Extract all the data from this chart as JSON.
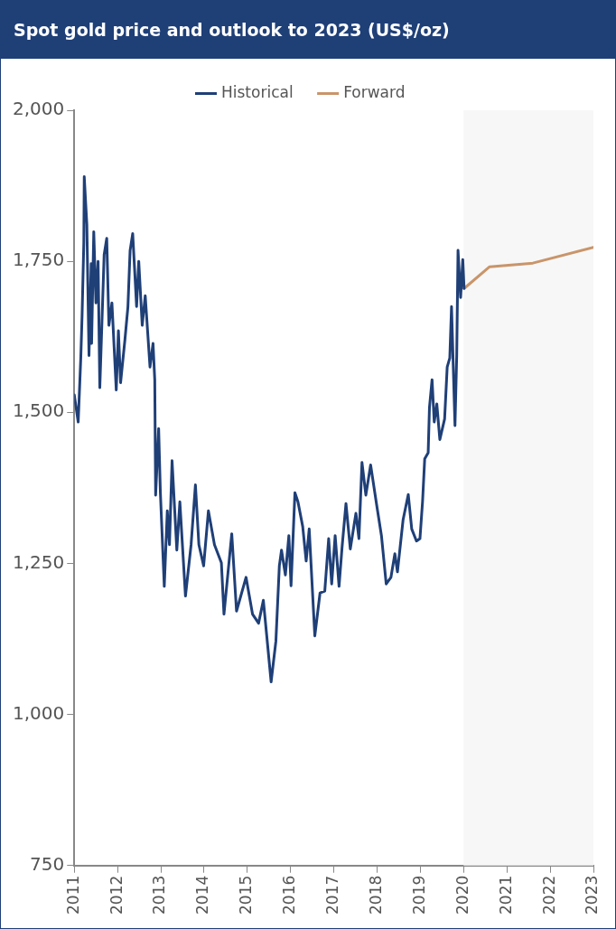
{
  "chart_data": {
    "type": "line",
    "title": "Spot gold price and outlook to 2023 (US$/oz)",
    "series": [
      {
        "name": "Historical",
        "color": "#1f3f77",
        "x": [
          2011.0,
          2011.09,
          2011.15,
          2011.18,
          2011.22,
          2011.23,
          2011.29,
          2011.34,
          2011.39,
          2011.4,
          2011.45,
          2011.5,
          2011.55,
          2011.59,
          2011.69,
          2011.75,
          2011.8,
          2011.87,
          2011.97,
          2012.02,
          2012.07,
          2012.17,
          2012.24,
          2012.29,
          2012.35,
          2012.44,
          2012.49,
          2012.57,
          2012.64,
          2012.75,
          2012.82,
          2012.86,
          2012.88,
          2012.95,
          2012.99,
          2013.08,
          2013.15,
          2013.2,
          2013.26,
          2013.37,
          2013.44,
          2013.57,
          2013.7,
          2013.8,
          2013.88,
          2013.99,
          2014.1,
          2014.24,
          2014.4,
          2014.46,
          2014.64,
          2014.75,
          2014.97,
          2015.12,
          2015.26,
          2015.37,
          2015.55,
          2015.66,
          2015.74,
          2015.79,
          2015.88,
          2015.96,
          2016.01,
          2016.1,
          2016.17,
          2016.28,
          2016.36,
          2016.43,
          2016.56,
          2016.68,
          2016.79,
          2016.88,
          2016.95,
          2017.03,
          2017.12,
          2017.19,
          2017.28,
          2017.38,
          2017.51,
          2017.58,
          2017.65,
          2017.74,
          2017.85,
          2018.0,
          2018.1,
          2018.21,
          2018.32,
          2018.41,
          2018.47,
          2018.6,
          2018.72,
          2018.8,
          2018.91,
          2018.99,
          2019.05,
          2019.1,
          2019.18,
          2019.21,
          2019.27,
          2019.32,
          2019.38,
          2019.45,
          2019.56,
          2019.62,
          2019.68,
          2019.72,
          2019.8,
          2019.84,
          2019.87,
          2019.93,
          2019.98,
          2020.01
        ],
        "values": [
          1529,
          1484,
          1590,
          1660,
          1781,
          1890,
          1811,
          1594,
          1746,
          1614,
          1799,
          1681,
          1750,
          1541,
          1761,
          1788,
          1644,
          1681,
          1537,
          1635,
          1549,
          1620,
          1675,
          1768,
          1796,
          1675,
          1750,
          1644,
          1693,
          1575,
          1614,
          1554,
          1363,
          1473,
          1367,
          1212,
          1337,
          1281,
          1420,
          1272,
          1352,
          1196,
          1281,
          1380,
          1281,
          1246,
          1337,
          1281,
          1251,
          1166,
          1299,
          1171,
          1227,
          1166,
          1151,
          1189,
          1054,
          1121,
          1246,
          1272,
          1231,
          1296,
          1213,
          1367,
          1352,
          1311,
          1254,
          1307,
          1130,
          1201,
          1204,
          1291,
          1216,
          1296,
          1212,
          1277,
          1349,
          1274,
          1333,
          1291,
          1417,
          1363,
          1413,
          1342,
          1296,
          1216,
          1227,
          1266,
          1236,
          1322,
          1364,
          1307,
          1287,
          1291,
          1352,
          1423,
          1433,
          1508,
          1554,
          1484,
          1514,
          1455,
          1489,
          1575,
          1590,
          1675,
          1478,
          1594,
          1768,
          1690,
          1753,
          1705
        ]
      },
      {
        "name": "Forward",
        "color": "#c9956a",
        "x": [
          2020.01,
          2020.6,
          2021.6,
          2023.0
        ],
        "values": [
          1705,
          1741,
          1747,
          1773
        ]
      }
    ],
    "xlim": [
      2011,
      2023
    ],
    "xticks": [
      2011,
      2012,
      2013,
      2014,
      2015,
      2016,
      2017,
      2018,
      2019,
      2020,
      2021,
      2022,
      2023
    ],
    "ylim": [
      750,
      2000
    ],
    "yticks": [
      {
        "value": 750,
        "label": "750"
      },
      {
        "value": 1000,
        "label": "1,000"
      },
      {
        "value": 1250,
        "label": "1,250"
      },
      {
        "value": 1500,
        "label": "1,500"
      },
      {
        "value": 1750,
        "label": "1,750"
      },
      {
        "value": 2000,
        "label": "2,000"
      }
    ],
    "bands": [
      {
        "axis": "x",
        "from": 2020,
        "to": 2023,
        "color": "#f7f7f7"
      }
    ],
    "legend": "top",
    "grid": false,
    "marker": "none",
    "line_style": "solid"
  }
}
